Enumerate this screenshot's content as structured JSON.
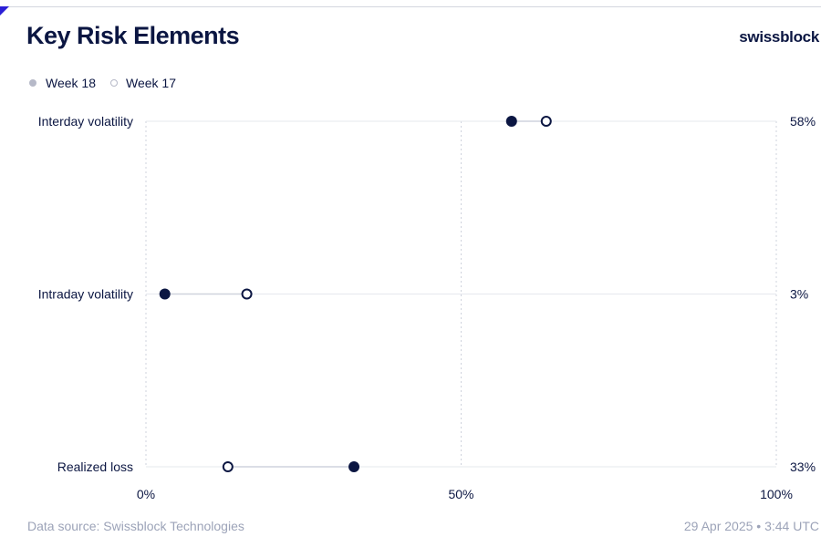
{
  "header": {
    "title": "Key Risk Elements",
    "brand": "swissblock"
  },
  "legend": {
    "items": [
      {
        "label": "Week 18",
        "style": "filled"
      },
      {
        "label": "Week 17",
        "style": "hollow"
      }
    ]
  },
  "footer": {
    "source": "Data source: Swissblock Technologies",
    "timestamp": "29 Apr 2025 • 3:44 UTC"
  },
  "chart_data": {
    "type": "dumbbell",
    "title": "Key Risk Elements",
    "xlim": [
      0,
      100
    ],
    "x_ticks": [
      "0%",
      "50%",
      "100%"
    ],
    "x_tick_values": [
      0,
      50,
      100
    ],
    "grid": true,
    "legend_position": "top-left",
    "categories": [
      "Interday volatility",
      "Intraday volatility",
      "Realized loss"
    ],
    "right_labels": [
      "58%",
      "3%",
      "33%"
    ],
    "series": [
      {
        "name": "Week 18",
        "marker": "filled",
        "values": [
          58,
          3,
          33
        ]
      },
      {
        "name": "Week 17",
        "marker": "hollow",
        "values": [
          63.5,
          16,
          13
        ]
      }
    ],
    "colors": {
      "primary": "#0b1642",
      "grid": "#e6e8ee",
      "connector": "#cfd3dd"
    }
  }
}
